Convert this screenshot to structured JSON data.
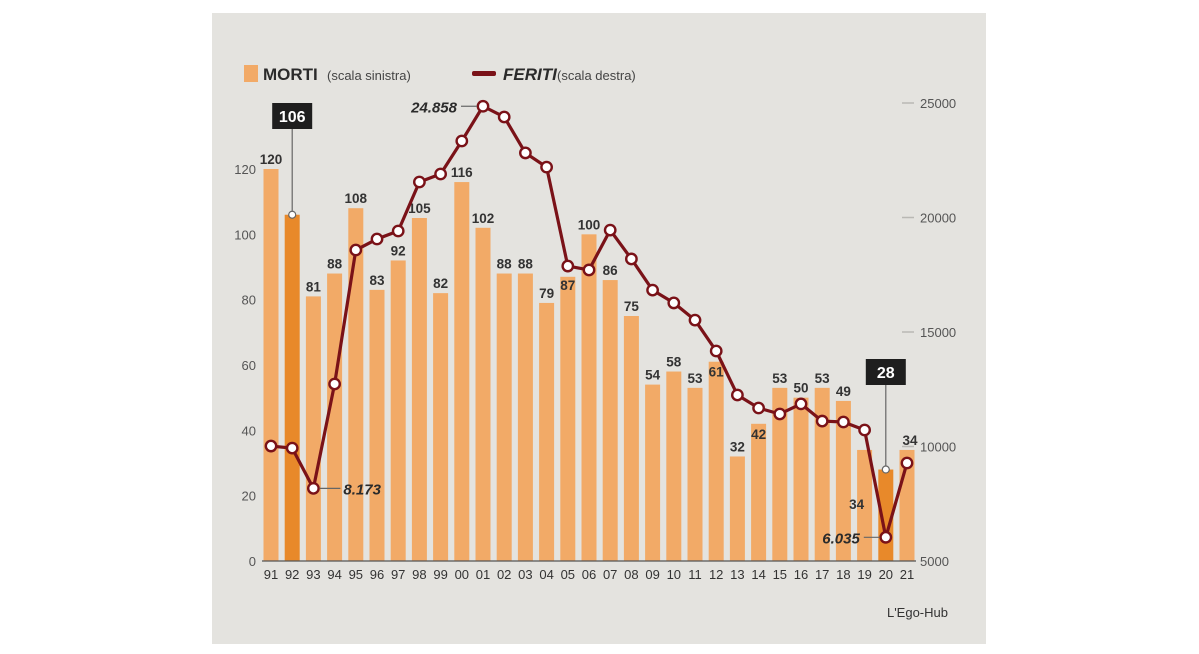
{
  "chart_data": {
    "type": "bar+line",
    "title": "",
    "source": "L'Ego-Hub",
    "legend": [
      {
        "name": "MORTI",
        "note": "(scala sinistra)",
        "kind": "bar",
        "color": "#f2aa67"
      },
      {
        "name": "FERITI",
        "note": "(scala destra)",
        "kind": "line",
        "color": "#7a1218"
      }
    ],
    "categories": [
      "91",
      "92",
      "93",
      "94",
      "95",
      "96",
      "97",
      "98",
      "99",
      "00",
      "01",
      "02",
      "03",
      "04",
      "05",
      "06",
      "07",
      "08",
      "09",
      "10",
      "11",
      "12",
      "13",
      "14",
      "15",
      "16",
      "17",
      "18",
      "19",
      "20",
      "21"
    ],
    "series": [
      {
        "name": "MORTI",
        "axis": "left",
        "type": "bar",
        "values": [
          120,
          106,
          81,
          88,
          108,
          83,
          92,
          105,
          82,
          116,
          102,
          88,
          88,
          79,
          87,
          100,
          86,
          75,
          54,
          58,
          53,
          61,
          32,
          42,
          53,
          50,
          53,
          49,
          34,
          28,
          34
        ],
        "highlighted": [
          "92",
          "20"
        ]
      },
      {
        "name": "FERITI",
        "axis": "right",
        "type": "line",
        "values": [
          10020,
          9930,
          8173,
          12730,
          18580,
          19060,
          19410,
          21550,
          21900,
          23340,
          24858,
          24390,
          22820,
          22200,
          17880,
          17710,
          19450,
          18190,
          16830,
          16270,
          15520,
          14170,
          12250,
          11680,
          11420,
          11860,
          11110,
          11070,
          10720,
          6035,
          9280
        ]
      }
    ],
    "left_axis": {
      "ticks": [
        0,
        20,
        40,
        60,
        80,
        100,
        120
      ],
      "range": [
        0,
        120
      ]
    },
    "right_axis": {
      "ticks": [
        5000,
        10000,
        15000,
        20000,
        25000
      ],
      "range": [
        5000,
        25000
      ]
    },
    "callouts": [
      {
        "category": "92",
        "series": "MORTI",
        "label": "106"
      },
      {
        "category": "20",
        "series": "MORTI",
        "label": "28"
      },
      {
        "category": "01",
        "series": "FERITI",
        "label": "24.858"
      },
      {
        "category": "93",
        "series": "FERITI",
        "label": "8.173"
      },
      {
        "category": "20",
        "series": "FERITI",
        "label": "6.035"
      }
    ],
    "colors": {
      "bar": "#f2aa67",
      "bar_highlight": "#e8892a",
      "line": "#7a1218",
      "callout_box": "#1e1e1e",
      "background": "#e4e3df"
    }
  }
}
